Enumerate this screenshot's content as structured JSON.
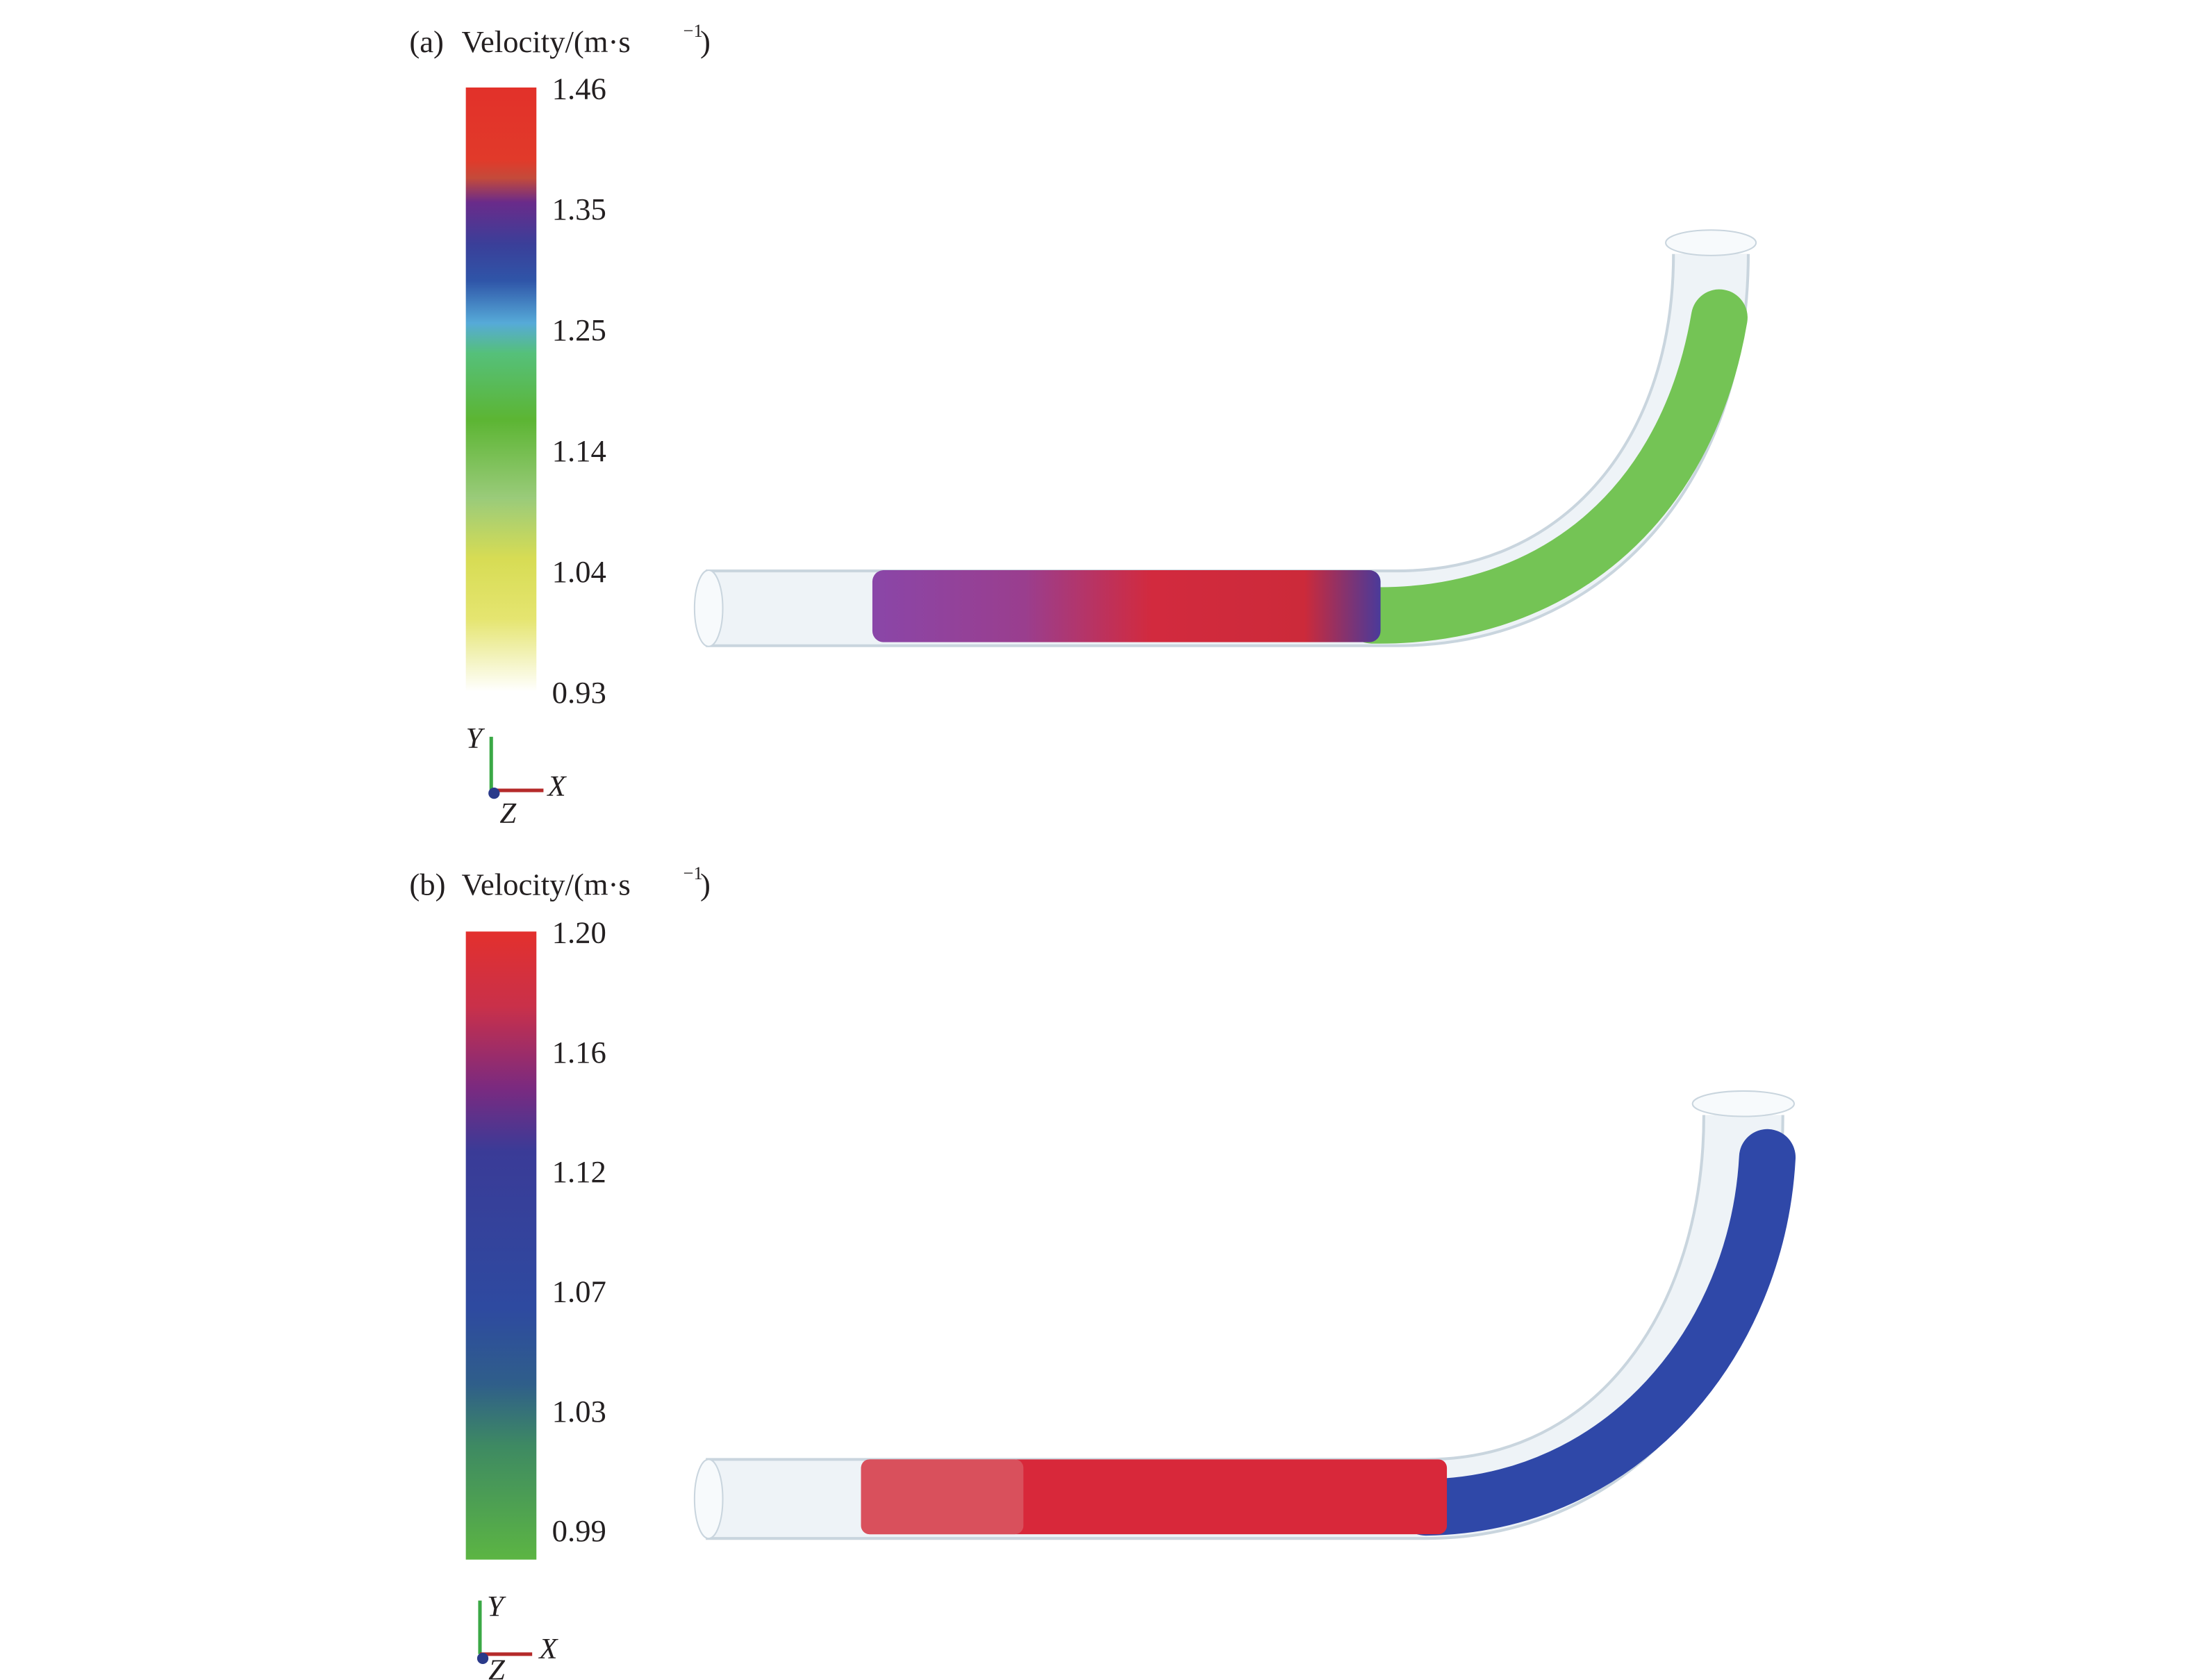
{
  "panels": [
    {
      "label": "(a)",
      "title": "Velocity/(m·s",
      "exponent": "−1",
      "close": ")",
      "ticks": [
        "1.46",
        "1.35",
        "1.25",
        "1.14",
        "1.04",
        "0.93"
      ],
      "axes": {
        "y": "Y",
        "x": "X",
        "z": "Z"
      }
    },
    {
      "label": "(b)",
      "title": "Velocity/(m·s",
      "exponent": "−1",
      "close": ")",
      "ticks": [
        "1.20",
        "1.16",
        "1.12",
        "1.07",
        "1.03",
        "0.99"
      ],
      "axes": {
        "y": "Y",
        "x": "X",
        "z": "Z"
      }
    }
  ]
}
